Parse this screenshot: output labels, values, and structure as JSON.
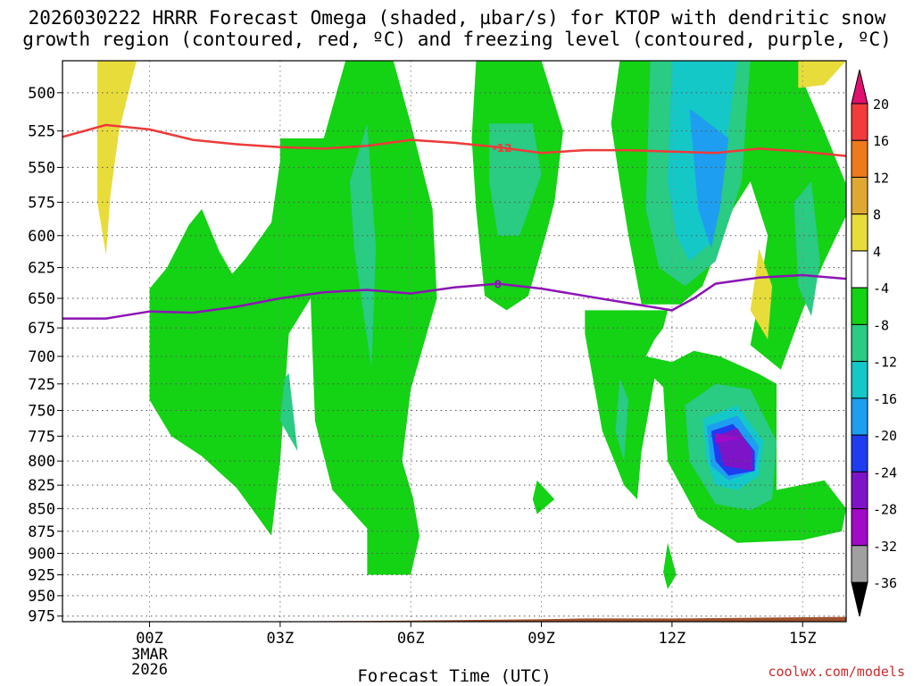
{
  "title": {
    "line1": "2026030222 HRRR Forecast Omega (shaded, µbar/s) for KTOP with dendritic snow",
    "line2": "growth region (contoured, red, ºC) and freezing level (contoured, purple, ºC)"
  },
  "credit": "coolwx.com/models",
  "chart_data": {
    "type": "contour",
    "xlabel": "Forecast Time (UTC)",
    "x_ticks": [
      {
        "hour": 0,
        "label": "00Z",
        "sub": [
          "3MAR",
          "2026"
        ]
      },
      {
        "hour": 3,
        "label": "03Z"
      },
      {
        "hour": 6,
        "label": "06Z"
      },
      {
        "hour": 9,
        "label": "09Z"
      },
      {
        "hour": 12,
        "label": "12Z"
      },
      {
        "hour": 15,
        "label": "15Z"
      }
    ],
    "xlim": [
      -2,
      16
    ],
    "y_ticks": [
      500,
      525,
      550,
      575,
      600,
      625,
      650,
      675,
      700,
      725,
      750,
      775,
      800,
      825,
      850,
      875,
      900,
      925,
      950,
      975
    ],
    "ylim": [
      480,
      982
    ],
    "y_scale": "log-pressure",
    "grid": true,
    "colorbar": {
      "levels": [
        20,
        16,
        12,
        8,
        4,
        -4,
        -8,
        -12,
        -16,
        -20,
        -24,
        -28,
        -32,
        -36
      ],
      "colors": [
        "#e0106e",
        "#f23c3c",
        "#ee7a1e",
        "#e0a832",
        "#e8dc3a",
        "#ffffff",
        "#14d214",
        "#2acb82",
        "#14c8c8",
        "#1e9ef0",
        "#1e3cf0",
        "#7e14c8",
        "#a00ac8",
        "#a0a0a0",
        "#000000"
      ]
    },
    "contours": [
      {
        "name": "-12",
        "color": "#ee3a3a",
        "label": "-12",
        "label_at": 8.1,
        "points": [
          [
            -2,
            529
          ],
          [
            -1,
            521
          ],
          [
            0,
            524
          ],
          [
            1,
            531
          ],
          [
            2,
            534
          ],
          [
            3,
            536
          ],
          [
            4,
            537
          ],
          [
            5,
            535
          ],
          [
            6,
            531
          ],
          [
            7,
            533
          ],
          [
            8,
            536
          ],
          [
            9,
            540
          ],
          [
            10,
            538
          ],
          [
            11,
            538
          ],
          [
            12,
            539
          ],
          [
            13,
            540
          ],
          [
            14,
            537
          ],
          [
            15,
            539
          ],
          [
            16,
            542
          ]
        ]
      },
      {
        "name": "0",
        "color": "#8c14b4",
        "label": "0",
        "label_at": 8,
        "points": [
          [
            -2,
            667
          ],
          [
            -1,
            667
          ],
          [
            0,
            661
          ],
          [
            1,
            662
          ],
          [
            2,
            657
          ],
          [
            3,
            650
          ],
          [
            4,
            645
          ],
          [
            5,
            643
          ],
          [
            6,
            646
          ],
          [
            7,
            641
          ],
          [
            8,
            638
          ],
          [
            9,
            642
          ],
          [
            10,
            648
          ],
          [
            11,
            654
          ],
          [
            12,
            660
          ],
          [
            12.5,
            650
          ],
          [
            13,
            638
          ],
          [
            14,
            633
          ],
          [
            15,
            631
          ],
          [
            16,
            634
          ]
        ]
      }
    ],
    "regions": [
      {
        "level": "4",
        "points": [
          [
            -1.2,
            480
          ],
          [
            -0.3,
            480
          ],
          [
            -0.7,
            525
          ],
          [
            -0.9,
            570
          ],
          [
            -1.0,
            615
          ],
          [
            -1.2,
            575
          ],
          [
            -1.2,
            525
          ]
        ]
      },
      {
        "level": "-4",
        "points": [
          [
            0,
            642
          ],
          [
            0.4,
            625
          ],
          [
            0.9,
            592
          ],
          [
            1.2,
            580
          ],
          [
            1.6,
            612
          ],
          [
            1.9,
            630
          ],
          [
            2.2,
            618
          ],
          [
            2.8,
            590
          ],
          [
            3,
            545
          ],
          [
            3,
            530
          ],
          [
            4,
            530
          ],
          [
            4.5,
            480
          ],
          [
            5.6,
            480
          ],
          [
            6,
            520
          ],
          [
            6.5,
            580
          ],
          [
            6.6,
            650
          ],
          [
            6,
            730
          ],
          [
            5.8,
            800
          ],
          [
            6.05,
            838
          ],
          [
            6.2,
            880
          ],
          [
            6,
            925
          ],
          [
            5,
            925
          ],
          [
            5,
            872
          ],
          [
            4.2,
            830
          ],
          [
            3.8,
            760
          ],
          [
            3.7,
            650
          ],
          [
            3.2,
            680
          ],
          [
            3.0,
            800
          ],
          [
            2.8,
            880
          ],
          [
            2.0,
            828
          ],
          [
            1.2,
            795
          ],
          [
            0.5,
            775
          ],
          [
            0,
            740
          ]
        ]
      },
      {
        "level": "-8",
        "points": [
          [
            3.2,
            715
          ],
          [
            3.4,
            790
          ],
          [
            3.0,
            760
          ],
          [
            3.1,
            720
          ]
        ]
      },
      {
        "level": "-8",
        "points": [
          [
            4.6,
            560
          ],
          [
            5.0,
            520
          ],
          [
            5.2,
            610
          ],
          [
            5.1,
            710
          ],
          [
            4.9,
            660
          ],
          [
            4.7,
            610
          ]
        ]
      },
      {
        "level": "-4",
        "points": [
          [
            7.5,
            480
          ],
          [
            9,
            480
          ],
          [
            9.5,
            525
          ],
          [
            9.3,
            575
          ],
          [
            9.1,
            600
          ],
          [
            8.7,
            648
          ],
          [
            8.2,
            660
          ],
          [
            7.7,
            648
          ],
          [
            7.5,
            580
          ],
          [
            7.4,
            530
          ]
        ]
      },
      {
        "level": "-8",
        "points": [
          [
            7.8,
            520
          ],
          [
            8.8,
            520
          ],
          [
            9.0,
            555
          ],
          [
            8.5,
            600
          ],
          [
            8.0,
            600
          ],
          [
            7.8,
            560
          ]
        ]
      },
      {
        "level": "-4",
        "points": [
          [
            8.9,
            820
          ],
          [
            9.3,
            840
          ],
          [
            8.9,
            856
          ],
          [
            8.8,
            840
          ]
        ]
      },
      {
        "level": "-4",
        "points": [
          [
            10.8,
            480
          ],
          [
            15.7,
            480
          ],
          [
            15.0,
            492
          ],
          [
            15.5,
            525
          ],
          [
            16,
            562
          ],
          [
            16,
            585
          ],
          [
            15.5,
            620
          ],
          [
            15.0,
            660
          ],
          [
            14.5,
            712
          ],
          [
            13.8,
            690
          ],
          [
            14,
            650
          ],
          [
            14.2,
            600
          ],
          [
            13.8,
            560
          ],
          [
            13.4,
            580
          ],
          [
            12.7,
            640
          ],
          [
            12.2,
            655
          ],
          [
            11.3,
            655
          ],
          [
            11,
            600
          ],
          [
            10.8,
            560
          ],
          [
            10.6,
            520
          ]
        ]
      },
      {
        "level": "-8",
        "points": [
          [
            11.5,
            480
          ],
          [
            13.8,
            480
          ],
          [
            13.6,
            560
          ],
          [
            13.0,
            620
          ],
          [
            12.3,
            640
          ],
          [
            11.7,
            625
          ],
          [
            11.4,
            580
          ]
        ]
      },
      {
        "level": "-12",
        "points": [
          [
            12,
            480
          ],
          [
            13.5,
            480
          ],
          [
            13.2,
            545
          ],
          [
            12.9,
            605
          ],
          [
            12.4,
            620
          ],
          [
            12.1,
            600
          ],
          [
            11.9,
            560
          ]
        ]
      },
      {
        "level": "-16",
        "points": [
          [
            12.4,
            510
          ],
          [
            13.3,
            530
          ],
          [
            13.1,
            580
          ],
          [
            12.9,
            610
          ],
          [
            12.6,
            580
          ]
        ]
      },
      {
        "level": "-8",
        "points": [
          [
            14.8,
            575
          ],
          [
            15.2,
            560
          ],
          [
            15.4,
            620
          ],
          [
            15.2,
            665
          ],
          [
            14.9,
            640
          ]
        ]
      },
      {
        "level": "4",
        "points": [
          [
            14.0,
            610
          ],
          [
            14.3,
            640
          ],
          [
            14.2,
            685
          ],
          [
            13.8,
            660
          ],
          [
            13.9,
            635
          ]
        ]
      },
      {
        "level": "-4",
        "points": [
          [
            10,
            660
          ],
          [
            11.9,
            660
          ],
          [
            11.8,
            675
          ],
          [
            11.6,
            685
          ],
          [
            11.4,
            700
          ],
          [
            12,
            705
          ],
          [
            12.5,
            695
          ],
          [
            13.1,
            700
          ],
          [
            14.0,
            716
          ],
          [
            14.4,
            725
          ],
          [
            14.4,
            830
          ],
          [
            15.5,
            820
          ],
          [
            16,
            850
          ],
          [
            15.9,
            875
          ],
          [
            15,
            885
          ],
          [
            13.5,
            888
          ],
          [
            12.6,
            860
          ],
          [
            11.9,
            800
          ],
          [
            11.8,
            728
          ],
          [
            11.6,
            720
          ],
          [
            11.3,
            790
          ],
          [
            11.2,
            840
          ],
          [
            10.9,
            825
          ],
          [
            10.4,
            770
          ],
          [
            10,
            680
          ]
        ]
      },
      {
        "level": "-8",
        "points": [
          [
            12.3,
            745
          ],
          [
            13,
            725
          ],
          [
            13.8,
            730
          ],
          [
            14.4,
            780
          ],
          [
            14.3,
            840
          ],
          [
            13.8,
            852
          ],
          [
            13,
            845
          ],
          [
            12.4,
            800
          ]
        ]
      },
      {
        "level": "-12",
        "points": [
          [
            12.7,
            758
          ],
          [
            13.5,
            745
          ],
          [
            14.1,
            780
          ],
          [
            14.0,
            815
          ],
          [
            13.5,
            830
          ],
          [
            13,
            825
          ],
          [
            12.8,
            800
          ]
        ]
      },
      {
        "level": "-16",
        "points": [
          [
            12.8,
            765
          ],
          [
            13.5,
            755
          ],
          [
            14.0,
            785
          ],
          [
            13.9,
            810
          ],
          [
            13.3,
            820
          ],
          [
            12.9,
            805
          ]
        ]
      },
      {
        "level": "-20",
        "points": [
          [
            12.9,
            770
          ],
          [
            13.4,
            763
          ],
          [
            13.9,
            790
          ],
          [
            13.9,
            810
          ],
          [
            13.3,
            815
          ],
          [
            13.0,
            800
          ]
        ]
      },
      {
        "level": "-24",
        "points": [
          [
            13.0,
            775
          ],
          [
            13.5,
            767
          ],
          [
            13.85,
            790
          ],
          [
            13.85,
            810
          ],
          [
            13.2,
            805
          ]
        ]
      },
      {
        "level": "-28",
        "points": [
          [
            13.0,
            772
          ],
          [
            13.6,
            777
          ],
          [
            13.0,
            782
          ]
        ]
      },
      {
        "level": "-8",
        "points": [
          [
            10.8,
            720
          ],
          [
            11.0,
            740
          ],
          [
            10.9,
            800
          ],
          [
            10.7,
            770
          ]
        ]
      },
      {
        "level": "-4",
        "points": [
          [
            11.9,
            888
          ],
          [
            12.1,
            925
          ],
          [
            11.9,
            942
          ],
          [
            11.8,
            922
          ]
        ]
      },
      {
        "level": "4",
        "points": [
          [
            14.9,
            480
          ],
          [
            16,
            480
          ],
          [
            15.5,
            495
          ],
          [
            14.9,
            497
          ]
        ]
      }
    ],
    "terrain": {
      "color": "#a0522d",
      "points": [
        [
          -2,
          982
        ],
        [
          2,
          982
        ],
        [
          5,
          981
        ],
        [
          7,
          980
        ],
        [
          9,
          979
        ],
        [
          10,
          978
        ],
        [
          12,
          978
        ],
        [
          14,
          977
        ],
        [
          16,
          976
        ]
      ]
    }
  }
}
